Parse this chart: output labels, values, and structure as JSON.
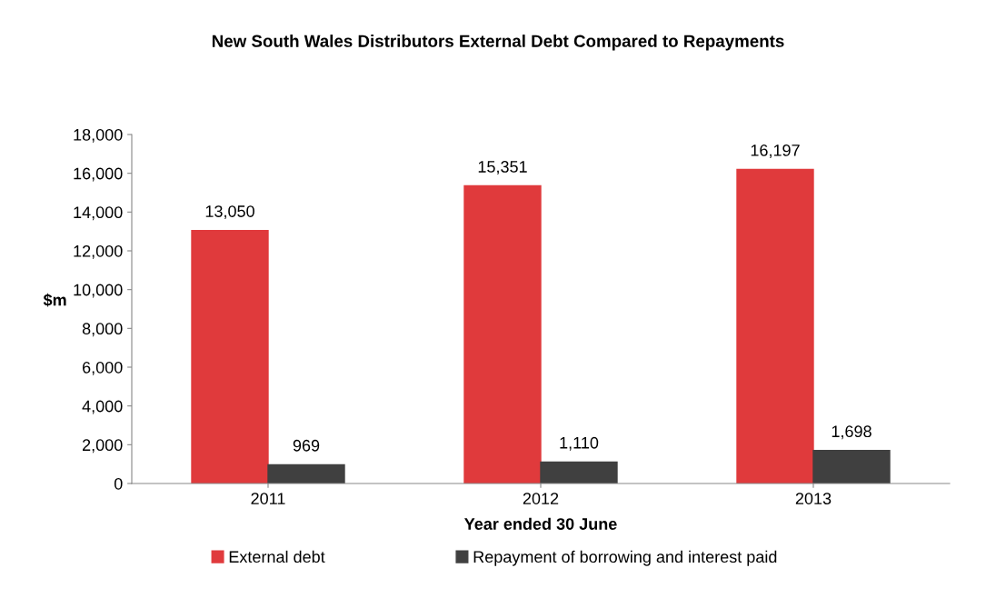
{
  "chart_data": {
    "type": "bar",
    "title": "New South Wales Distributors External Debt Compared to Repayments",
    "xlabel": "Year ended 30 June",
    "ylabel": "$m",
    "categories": [
      "2011",
      "2012",
      "2013"
    ],
    "series": [
      {
        "name": "External debt",
        "color": "#e03a3c",
        "values": [
          13050,
          15351,
          16197
        ],
        "value_labels": [
          "13,050",
          "15,351",
          "16,197"
        ]
      },
      {
        "name": "Repayment of borrowing and interest paid",
        "color": "#404040",
        "values": [
          969,
          1110,
          1698
        ],
        "value_labels": [
          "969",
          "1,110",
          "1,698"
        ]
      }
    ],
    "ylim": [
      0,
      18000
    ],
    "yticks": [
      {
        "value": 0,
        "label": "0"
      },
      {
        "value": 2000,
        "label": "2,000"
      },
      {
        "value": 4000,
        "label": "4,000"
      },
      {
        "value": 6000,
        "label": "6,000"
      },
      {
        "value": 8000,
        "label": "8,000"
      },
      {
        "value": 10000,
        "label": "10,000"
      },
      {
        "value": 12000,
        "label": "12,000"
      },
      {
        "value": 14000,
        "label": "14,000"
      },
      {
        "value": 16000,
        "label": "16,000"
      },
      {
        "value": 18000,
        "label": "18,000"
      }
    ],
    "grid": false,
    "legend": "bottom"
  }
}
